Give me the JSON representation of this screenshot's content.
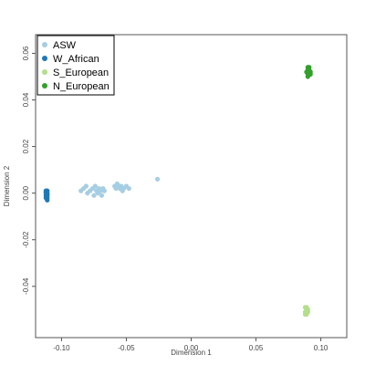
{
  "chart_data": {
    "type": "scatter",
    "title": "",
    "xlabel": "Dimension 1",
    "ylabel": "Dimension 2",
    "xlim": [
      -0.12,
      0.12
    ],
    "ylim": [
      -0.062,
      0.068
    ],
    "x_ticks": [
      -0.1,
      -0.05,
      0.0,
      0.05,
      0.1
    ],
    "x_tick_labels": [
      "-0.10",
      "-0.05",
      "0.00",
      "0.05",
      "0.10"
    ],
    "y_ticks": [
      -0.04,
      -0.02,
      0.0,
      0.02,
      0.04,
      0.06
    ],
    "y_tick_labels": [
      "-0.04",
      "-0.02",
      "0.00",
      "0.02",
      "0.04",
      "0.06"
    ],
    "grid": false,
    "legend_position": "top-left",
    "series": [
      {
        "name": "ASW",
        "color": "#a6cee3",
        "points": [
          [
            -0.085,
            0.001
          ],
          [
            -0.083,
            0.002
          ],
          [
            -0.081,
            0.003
          ],
          [
            -0.08,
            0.0
          ],
          [
            -0.078,
            0.001
          ],
          [
            -0.076,
            0.002
          ],
          [
            -0.075,
            -0.001
          ],
          [
            -0.074,
            0.003
          ],
          [
            -0.073,
            0.001
          ],
          [
            -0.072,
            0.0
          ],
          [
            -0.071,
            0.002
          ],
          [
            -0.07,
            0.001
          ],
          [
            -0.069,
            -0.001
          ],
          [
            -0.068,
            0.002
          ],
          [
            -0.067,
            0.001
          ],
          [
            -0.059,
            0.003
          ],
          [
            -0.058,
            0.002
          ],
          [
            -0.057,
            0.004
          ],
          [
            -0.056,
            0.003
          ],
          [
            -0.055,
            0.002
          ],
          [
            -0.054,
            0.003
          ],
          [
            -0.053,
            0.001
          ],
          [
            -0.052,
            0.002
          ],
          [
            -0.05,
            0.003
          ],
          [
            -0.048,
            0.002
          ],
          [
            -0.026,
            0.006
          ]
        ]
      },
      {
        "name": "W_African",
        "color": "#1f78b4",
        "points": [
          [
            -0.112,
            0.001
          ],
          [
            -0.112,
            0.0
          ],
          [
            -0.112,
            -0.001
          ],
          [
            -0.112,
            -0.002
          ],
          [
            -0.111,
            0.001
          ],
          [
            -0.111,
            0.0
          ],
          [
            -0.111,
            -0.001
          ],
          [
            -0.111,
            -0.002
          ],
          [
            -0.111,
            -0.003
          ],
          [
            -0.112,
            0.0005
          ],
          [
            -0.111,
            -0.0005
          ]
        ]
      },
      {
        "name": "S_European",
        "color": "#b2df8a",
        "points": [
          [
            0.088,
            -0.049
          ],
          [
            0.089,
            -0.05
          ],
          [
            0.088,
            -0.051
          ],
          [
            0.089,
            -0.052
          ],
          [
            0.09,
            -0.05
          ],
          [
            0.089,
            -0.051
          ],
          [
            0.088,
            -0.052
          ],
          [
            0.09,
            -0.051
          ],
          [
            0.089,
            -0.049
          ]
        ]
      },
      {
        "name": "N_European",
        "color": "#33a02c",
        "points": [
          [
            0.09,
            0.054
          ],
          [
            0.09,
            0.053
          ],
          [
            0.09,
            0.052
          ],
          [
            0.091,
            0.053
          ],
          [
            0.091,
            0.052
          ],
          [
            0.09,
            0.051
          ],
          [
            0.091,
            0.051
          ],
          [
            0.092,
            0.052
          ],
          [
            0.091,
            0.054
          ],
          [
            0.09,
            0.05
          ],
          [
            0.092,
            0.051
          ],
          [
            0.089,
            0.052
          ]
        ]
      }
    ]
  }
}
